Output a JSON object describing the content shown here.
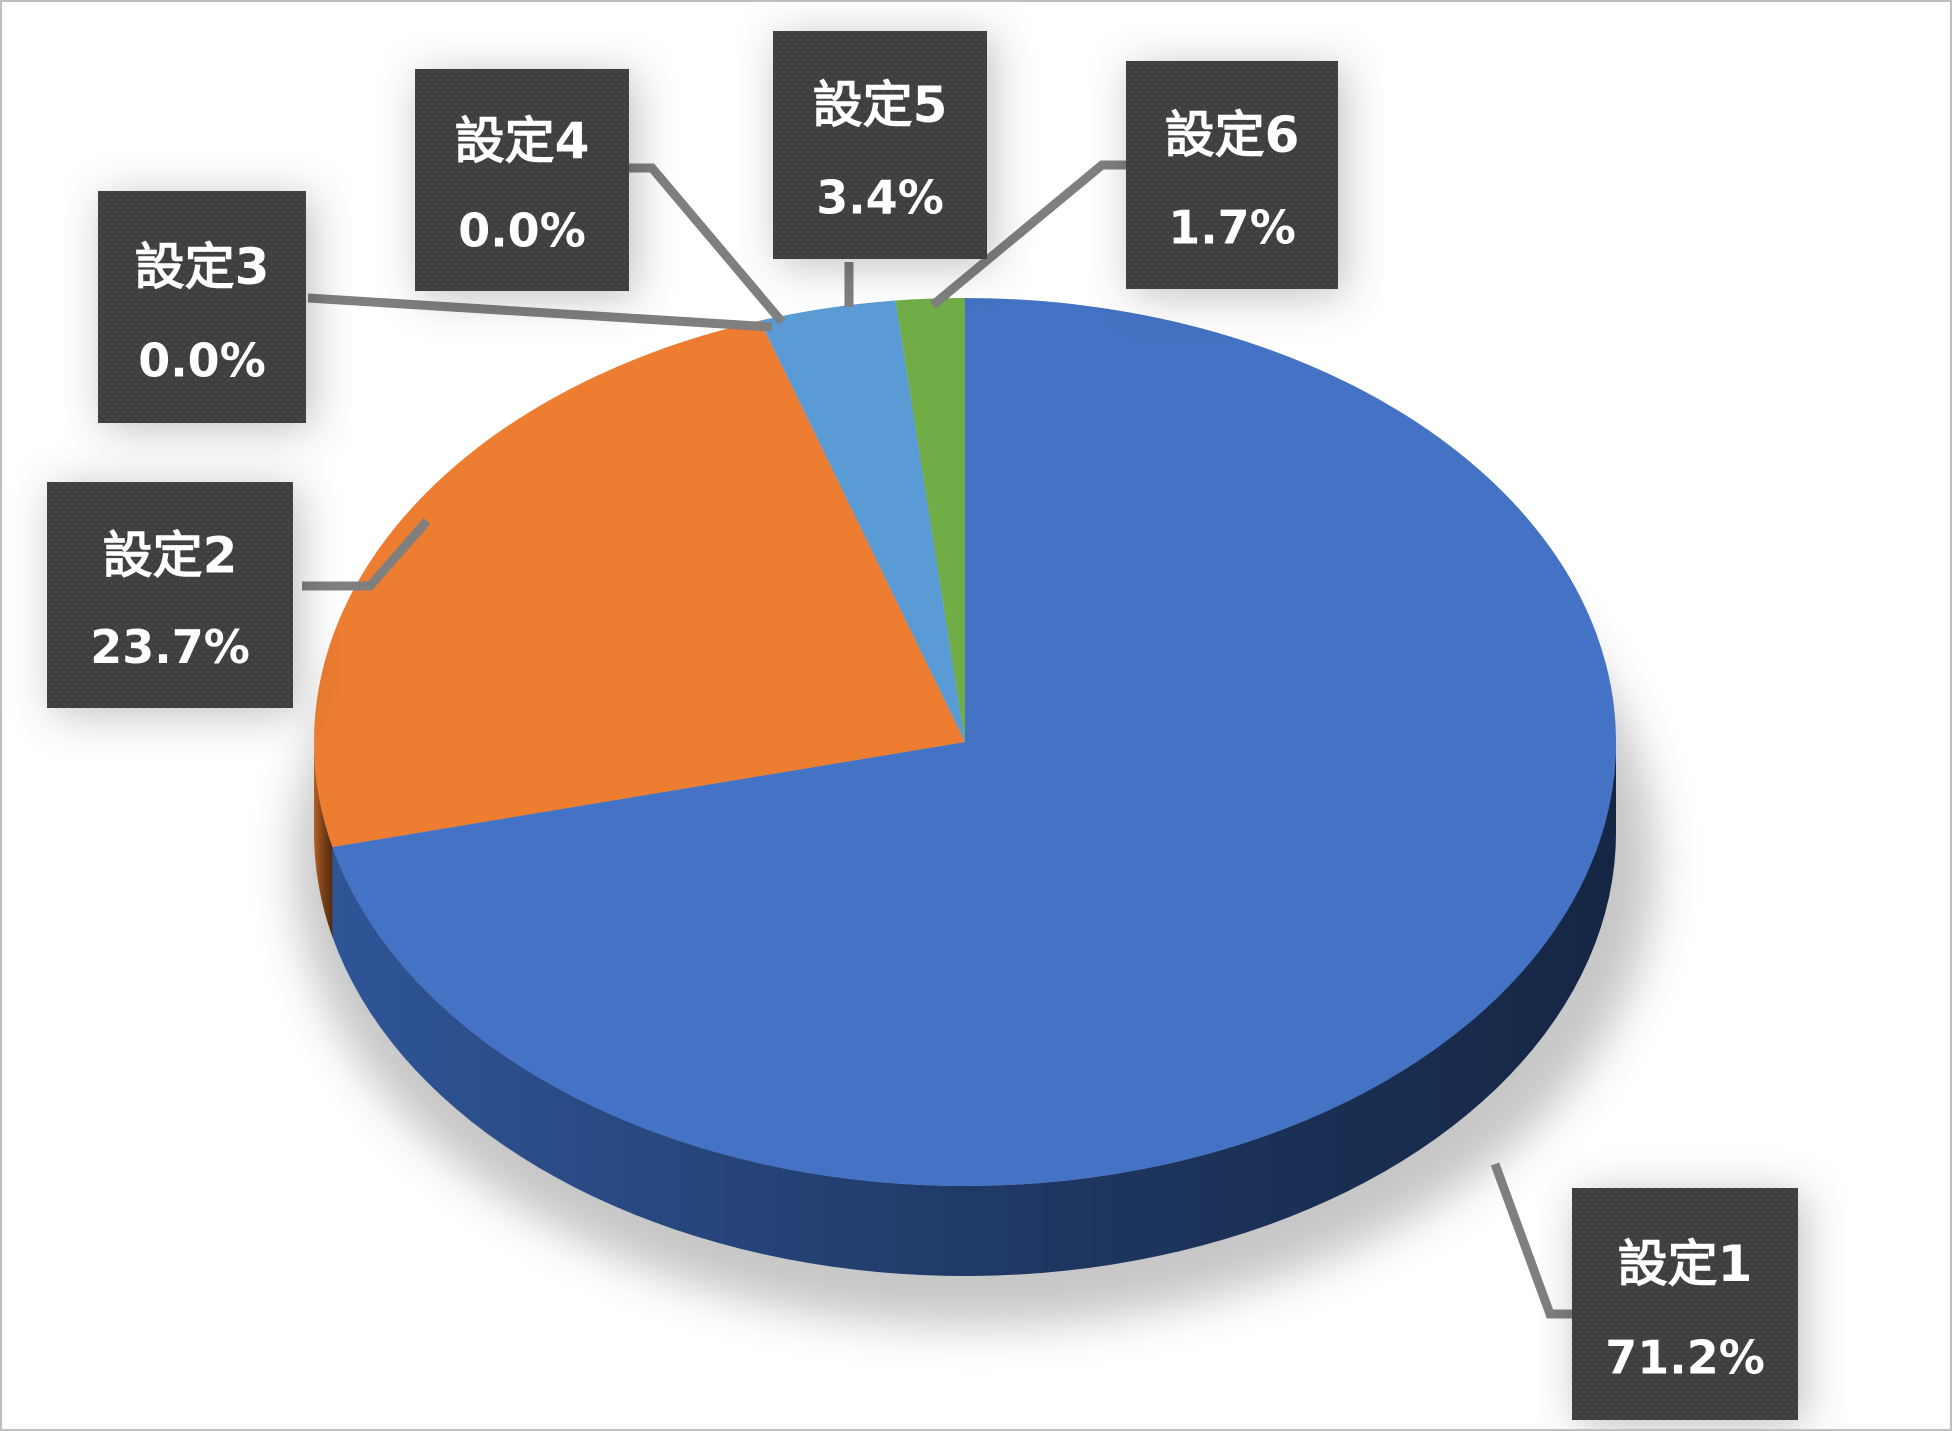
{
  "chart_data": {
    "type": "pie",
    "style": "3d",
    "title": "",
    "legend": "none",
    "slices": [
      {
        "label": "設定1",
        "value": 71.2,
        "value_label": "71.2%",
        "color": "#4472c4",
        "side_color": "#2f5597"
      },
      {
        "label": "設定2",
        "value": 23.7,
        "value_label": "23.7%",
        "color": "#ed7d31",
        "side_color": "#b45f23"
      },
      {
        "label": "設定3",
        "value": 0.0,
        "value_label": "0.0%",
        "color": "#a5a5a5",
        "side_color": "#7c7c7c"
      },
      {
        "label": "設定4",
        "value": 0.0,
        "value_label": "0.0%",
        "color": "#ffc000",
        "side_color": "#bf9000"
      },
      {
        "label": "設定5",
        "value": 3.4,
        "value_label": "3.4%",
        "color": "#5b9bd5",
        "side_color": "#41719c"
      },
      {
        "label": "設定6",
        "value": 1.7,
        "value_label": "1.7%",
        "color": "#70ad47",
        "side_color": "#507e32"
      }
    ],
    "data_label_box_color": "#404040",
    "leader_line_color": "#7f7f7f"
  }
}
